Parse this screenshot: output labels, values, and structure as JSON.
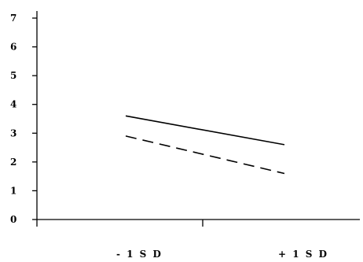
{
  "chart_data": {
    "type": "line",
    "categories": [
      "- 1 S D",
      "+ 1 S D"
    ],
    "series": [
      {
        "values": [
          3.6,
          2.6
        ],
        "line_style": "solid",
        "color": "#000000"
      },
      {
        "values": [
          2.9,
          1.6
        ],
        "line_style": "dashed",
        "color": "#000000"
      }
    ],
    "y_ticks": [
      "0",
      "1",
      "2",
      "3",
      "4",
      "5",
      "6",
      "7"
    ],
    "ylim": [
      0,
      7
    ],
    "grid": false,
    "legend": "none"
  }
}
